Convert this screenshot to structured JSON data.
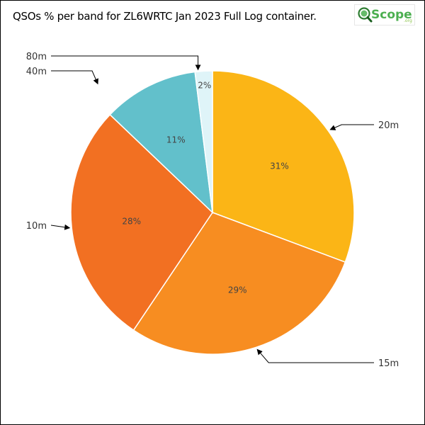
{
  "chart_data": {
    "type": "pie",
    "title": "QSOs % per band for ZL6WRTC Jan 2023 Full Log container.",
    "slices": [
      {
        "label": "20m",
        "value": 31,
        "display": "31%",
        "color": "#fbb516"
      },
      {
        "label": "15m",
        "value": 29,
        "display": "29%",
        "color": "#f78d21"
      },
      {
        "label": "10m",
        "value": 28,
        "display": "28%",
        "color": "#f27022"
      },
      {
        "label": "40m",
        "value": 11,
        "display": "11%",
        "color": "#62c0cb"
      },
      {
        "label": "80m",
        "value": 2,
        "display": "2%",
        "color": "#dff4f8"
      }
    ]
  },
  "logo": {
    "text_main": "Scope",
    "text_prefix": "Q",
    "text_suffix": ".org",
    "icon": "magnifier-globe-icon",
    "color": "#4caf50"
  }
}
